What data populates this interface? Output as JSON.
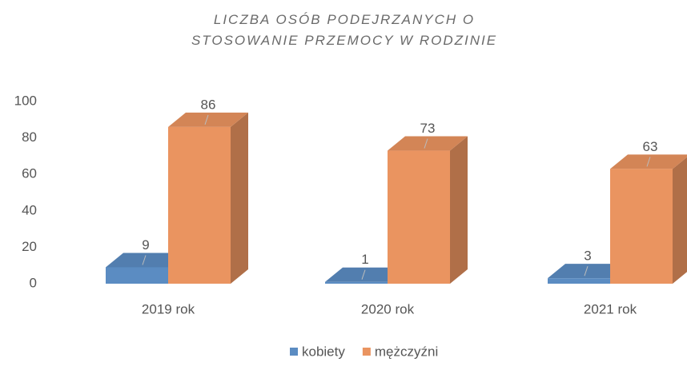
{
  "chart_data": {
    "type": "bar3d",
    "title": "LICZBA OSÓB PODEJRZANYCH O STOSOWANIE PRZEMOCY W RODZINIE",
    "categories": [
      "2019 rok",
      "2020 rok",
      "2021 rok"
    ],
    "series": [
      {
        "name": "kobiety",
        "color": "#5b8cc2",
        "values": [
          9,
          1,
          3
        ]
      },
      {
        "name": "mężczyźni",
        "color": "#ea9460",
        "values": [
          86,
          73,
          63
        ]
      }
    ],
    "ylim": [
      0,
      100
    ],
    "yticks": [
      0,
      20,
      40,
      60,
      80,
      100
    ],
    "grid": false,
    "legend": "bottom"
  }
}
